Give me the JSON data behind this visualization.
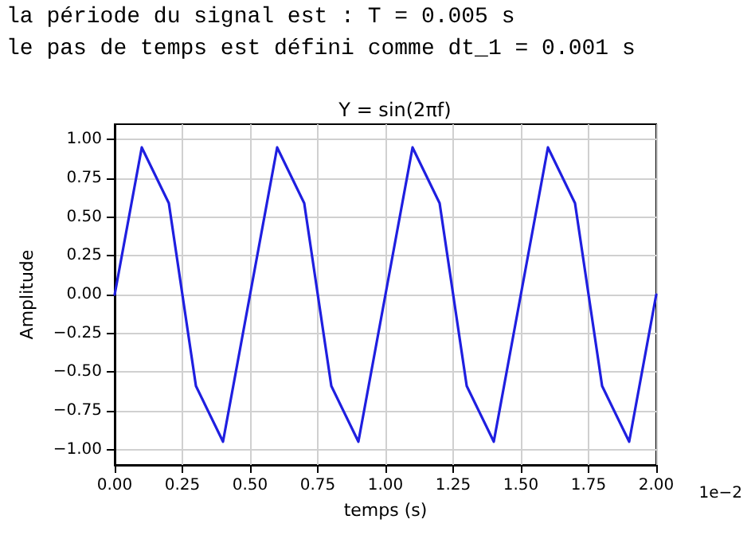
{
  "chart_data": {
    "type": "line",
    "title": "Y = sin(2πf)",
    "xlabel": "temps (s)",
    "ylabel": "Amplitude",
    "annotations": [
      "la période du signal est : T = 0.005 s",
      "le pas de temps est défini comme dt_1 = 0.001 s",
      "1e−2"
    ],
    "x": [
      0,
      0.1,
      0.2,
      0.3,
      0.4,
      0.5,
      0.6,
      0.7,
      0.8,
      0.9,
      1.0,
      1.1,
      1.2,
      1.3,
      1.4,
      1.5,
      1.6,
      1.7,
      1.8,
      1.9,
      2.0
    ],
    "series": [
      {
        "color": "#1f1fe0",
        "values": [
          0,
          0.95,
          0.59,
          -0.59,
          -0.95,
          0,
          0.95,
          0.59,
          -0.59,
          -0.95,
          0,
          0.95,
          0.59,
          -0.59,
          -0.95,
          0,
          0.95,
          0.59,
          -0.59,
          -0.95,
          0
        ]
      }
    ],
    "xlim": [
      0,
      2
    ],
    "xticks": [
      {
        "value": 0,
        "label": "0.00"
      },
      {
        "value": 0.25,
        "label": "0.25"
      },
      {
        "value": 0.5,
        "label": "0.50"
      },
      {
        "value": 0.75,
        "label": "0.75"
      },
      {
        "value": 1,
        "label": "1.00"
      },
      {
        "value": 1.25,
        "label": "1.25"
      },
      {
        "value": 1.5,
        "label": "1.50"
      },
      {
        "value": 1.75,
        "label": "1.75"
      },
      {
        "value": 2,
        "label": "2.00"
      }
    ],
    "ylim": [
      -1.1,
      1.1
    ],
    "yticks": [
      {
        "value": -1,
        "label": "−1.00"
      },
      {
        "value": -0.75,
        "label": "−0.75"
      },
      {
        "value": -0.5,
        "label": "−0.50"
      },
      {
        "value": -0.25,
        "label": "−0.25"
      },
      {
        "value": 0,
        "label": "0.00"
      },
      {
        "value": 0.25,
        "label": "0.25"
      },
      {
        "value": 0.5,
        "label": "0.50"
      },
      {
        "value": 0.75,
        "label": "0.75"
      },
      {
        "value": 1,
        "label": "1.00"
      }
    ],
    "grid": true,
    "marker": "none",
    "line_style": "solid"
  }
}
